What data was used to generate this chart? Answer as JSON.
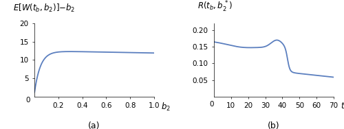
{
  "plot_a": {
    "title": "E[W(t_b,b_2)]-b_2",
    "xlabel": "b_2",
    "xlim": [
      0,
      1.0
    ],
    "ylim": [
      0,
      20
    ],
    "yticks": [
      5,
      10,
      15,
      20
    ],
    "xticks": [
      0.2,
      0.4,
      0.6,
      0.8,
      1.0
    ],
    "xtick_labels": [
      "0.2",
      "0.4",
      "0.6",
      "0.8",
      "1.0"
    ],
    "label": "(a)"
  },
  "plot_b": {
    "title": "R(t_b,b_2*)",
    "xlabel": "t_b",
    "xlim": [
      0,
      70
    ],
    "ylim": [
      0,
      0.22
    ],
    "yticks": [
      0.05,
      0.1,
      0.15,
      0.2
    ],
    "xticks": [
      10,
      20,
      30,
      40,
      50,
      60,
      70
    ],
    "xtick_labels": [
      "10",
      "20",
      "30",
      "40",
      "50",
      "60",
      "70"
    ],
    "label": "(b)"
  },
  "line_color": "#5B7FBF",
  "line_width": 1.3,
  "background_color": "#ffffff",
  "title_fontsize": 8.5,
  "tick_fontsize": 7.5,
  "sublabel_fontsize": 9,
  "xlabel_fontsize": 8.5
}
